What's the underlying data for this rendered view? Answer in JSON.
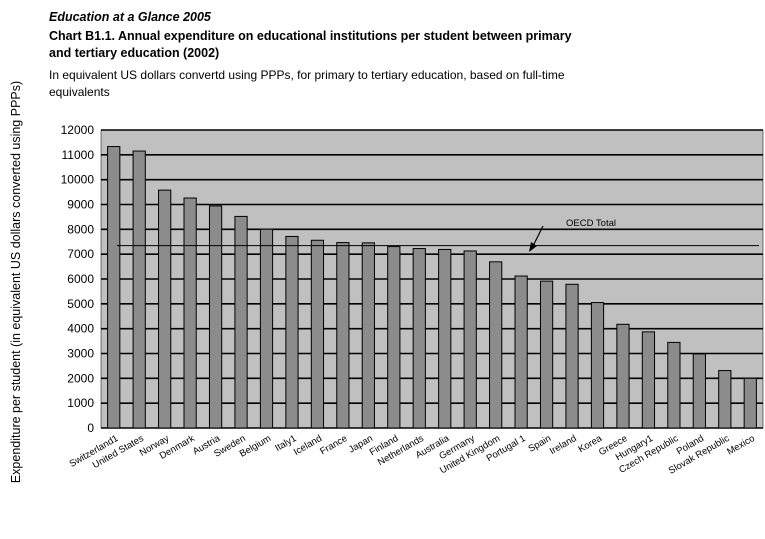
{
  "chart_data": {
    "type": "bar",
    "supertitle": "Education at a Glance 2005",
    "title_line1": "Chart B1.1. Annual expenditure on educational institutions per student between primary",
    "title_line2": "and tertiary education (2002)",
    "subtitle_line1": "In equivalent US dollars convertd using PPPs, for primary to tertiary education, based on full-time",
    "subtitle_line2": "equivalents",
    "ylabel": "Expenditure per student (in equivalent US dollars converted using PPPs)",
    "xlabel": "",
    "ylim": [
      0,
      12000
    ],
    "yticks": [
      "0",
      "1000",
      "2000",
      "3000",
      "4000",
      "5000",
      "6000",
      "7000",
      "8000",
      "9000",
      "10000",
      "11000",
      "12000"
    ],
    "grid": true,
    "categories": [
      "Switzerland1",
      "United States",
      "Norway",
      "Denmark",
      "Austria",
      "Sweden",
      "Belgium",
      "Italy1",
      "Iceland",
      "France",
      "Japan",
      "Finland",
      "Netherlands",
      "Australia",
      "Germany",
      "United Kingdom",
      "Portugal 1",
      "Spain",
      "Ireland",
      "Korea",
      "Greece",
      "Hungary1",
      "Czech Republic",
      "Poland",
      "Slovak Republic",
      "Mexico"
    ],
    "values": [
      11334,
      11152,
      9580,
      9261,
      8943,
      8520,
      8005,
      7714,
      7560,
      7467,
      7456,
      7304,
      7225,
      7190,
      7129,
      6691,
      6120,
      5914,
      5787,
      5052,
      4176,
      3872,
      3447,
      2982,
      2313,
      2001
    ],
    "reference_line": {
      "label": "OECD Total",
      "value": 7343
    },
    "colors": {
      "plot_bg": "#c0c0c0",
      "bar": "#8c8c8c",
      "bar_edge": "#000000",
      "grid": "#000000"
    }
  }
}
